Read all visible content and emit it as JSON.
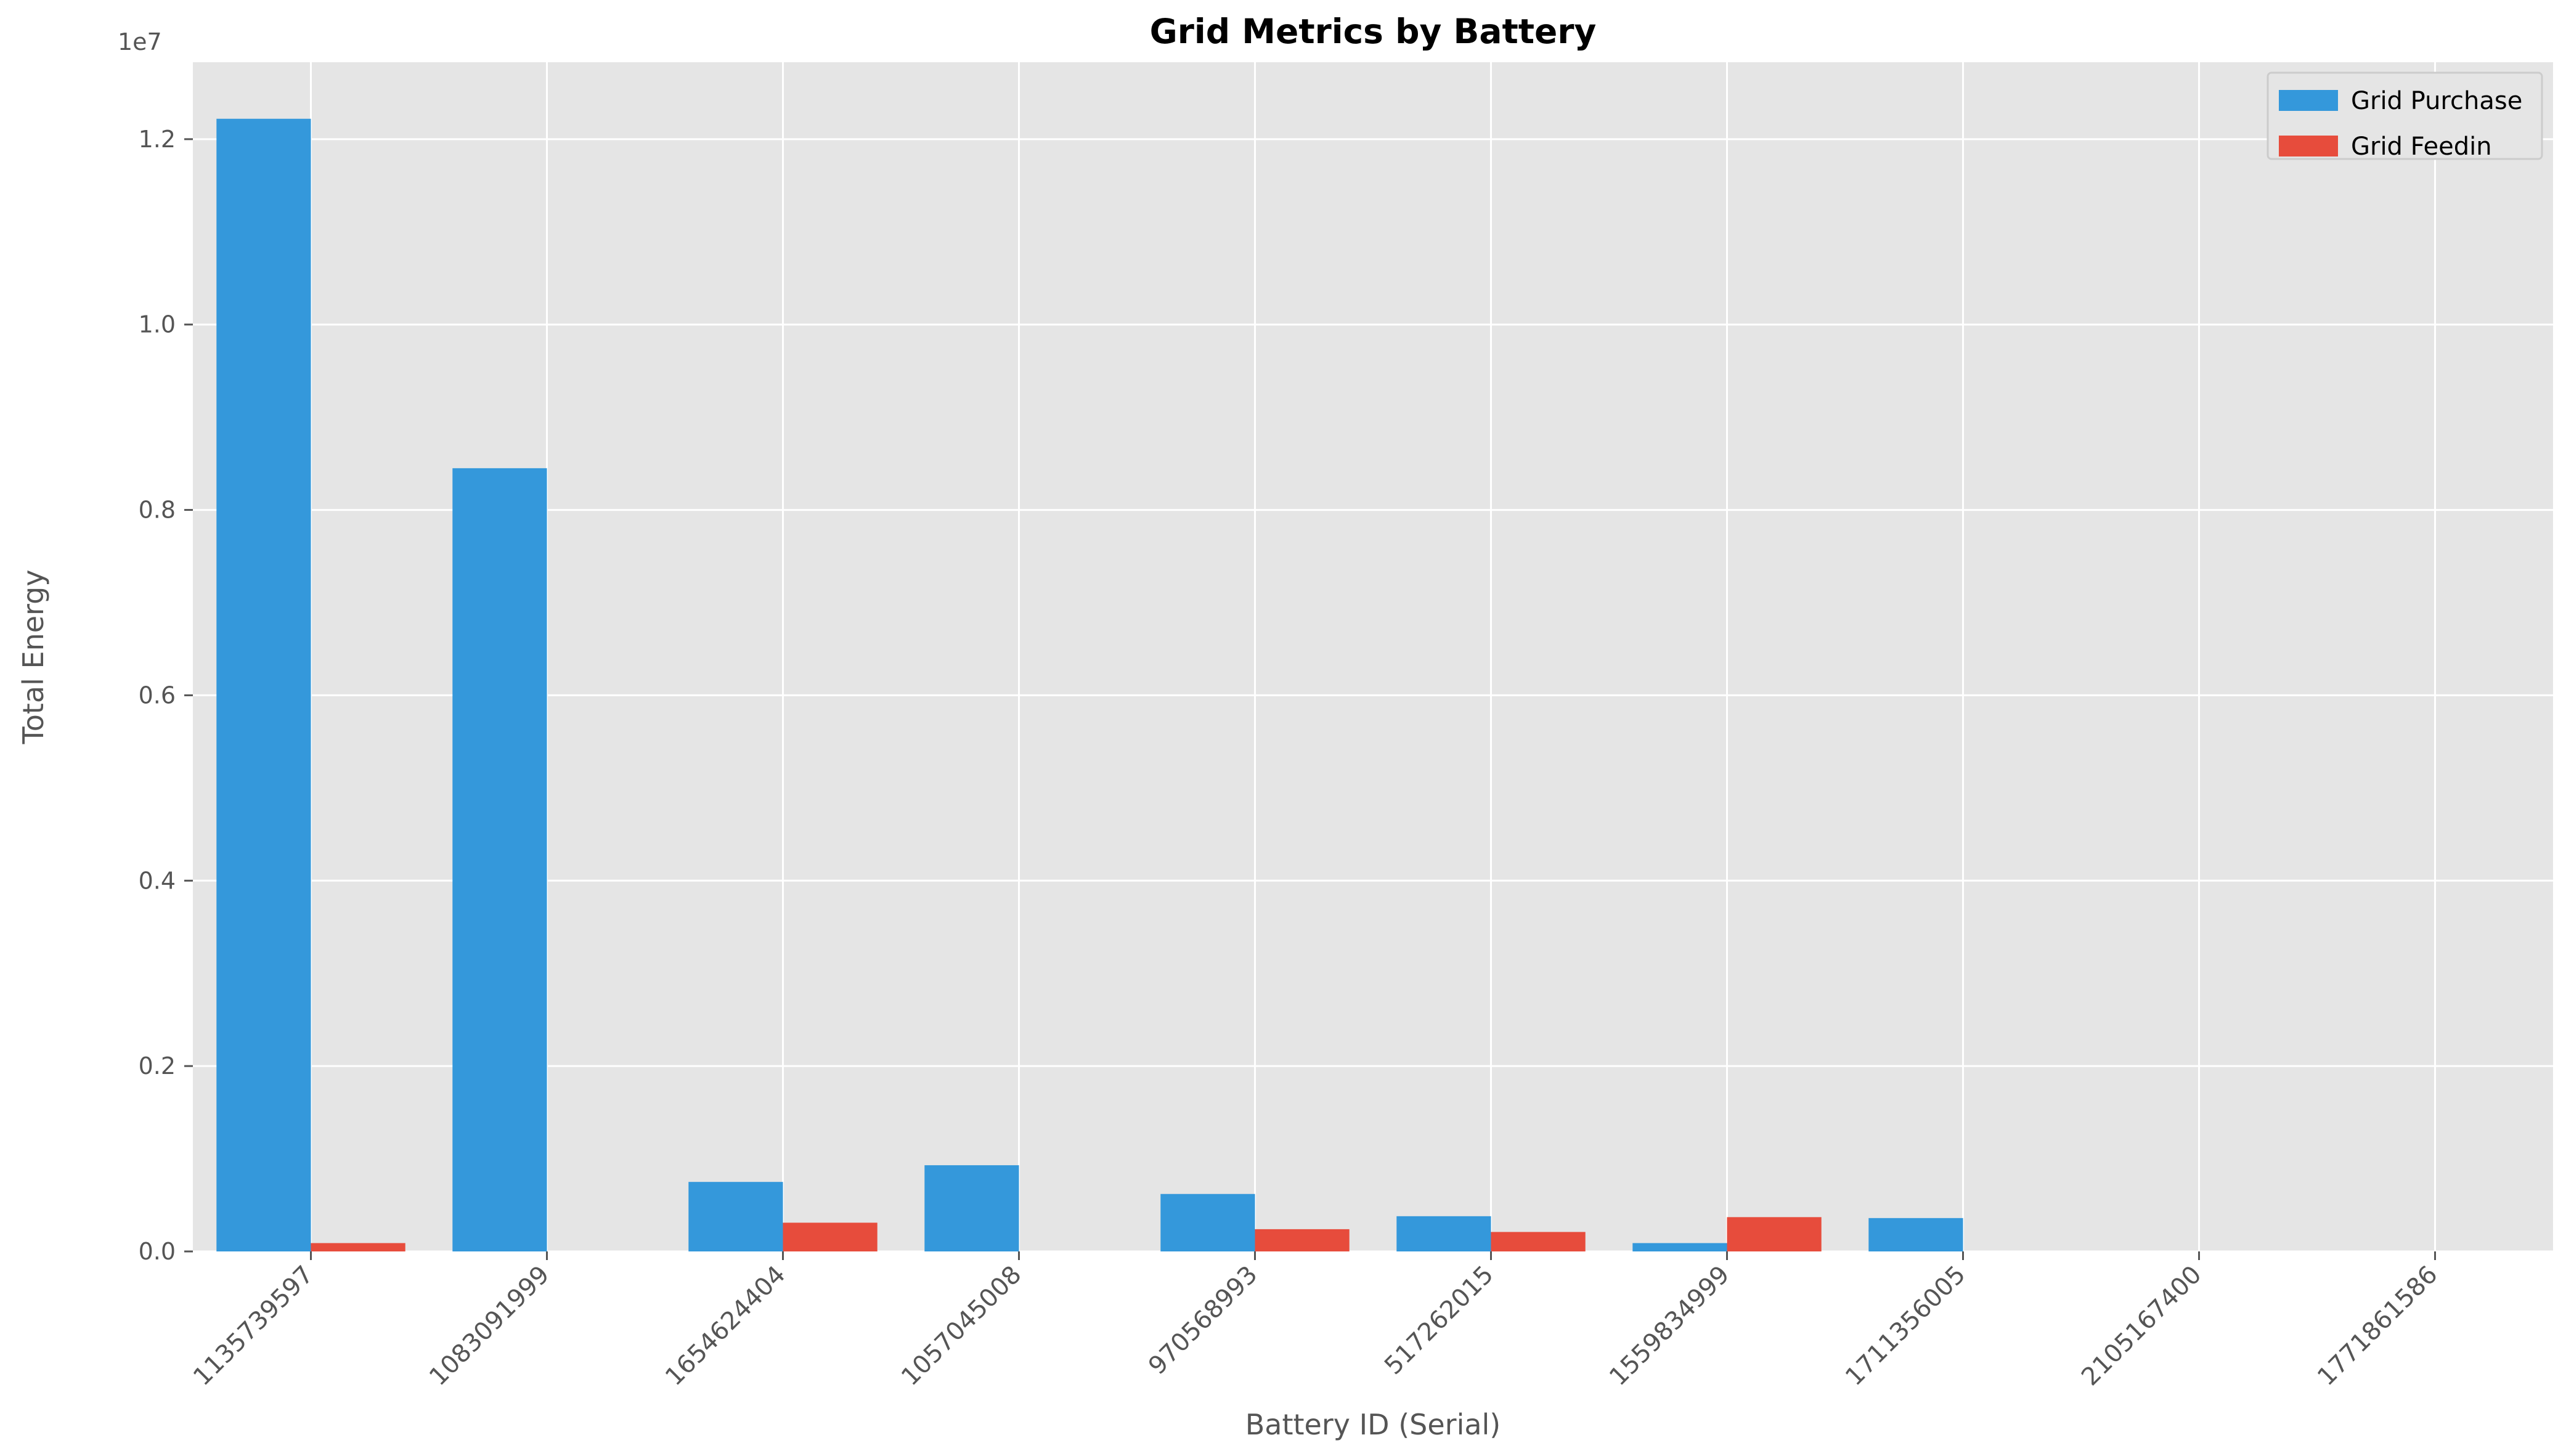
{
  "chart_data": {
    "type": "bar",
    "title": "Grid Metrics by Battery",
    "xlabel": "Battery ID (Serial)",
    "ylabel": "Total Energy",
    "y_offset_label": "1e7",
    "categories": [
      "1135739597",
      "1083091999",
      "1654624404",
      "1057045008",
      "970568993",
      "517262015",
      "1559834999",
      "1711356005",
      "2105167400",
      "1771861586"
    ],
    "series": [
      {
        "name": "Grid Purchase",
        "color": "#3498db",
        "values": [
          12220000,
          8450000,
          750000,
          930000,
          620000,
          380000,
          90000,
          360000,
          0,
          0
        ]
      },
      {
        "name": "Grid Feedin",
        "color": "#e74c3c",
        "values": [
          90000,
          0,
          310000,
          0,
          240000,
          210000,
          370000,
          0,
          0,
          0
        ]
      }
    ],
    "ylim": [
      0,
      12830000
    ],
    "yticks": [
      0,
      2000000,
      4000000,
      6000000,
      8000000,
      10000000,
      12000000
    ],
    "ytick_labels": [
      "0.0",
      "0.2",
      "0.4",
      "0.6",
      "0.8",
      "1.0",
      "1.2"
    ],
    "grid": true,
    "legend_position": "top-right",
    "plot_background": "#e5e5e5",
    "grid_color": "#ffffff"
  }
}
